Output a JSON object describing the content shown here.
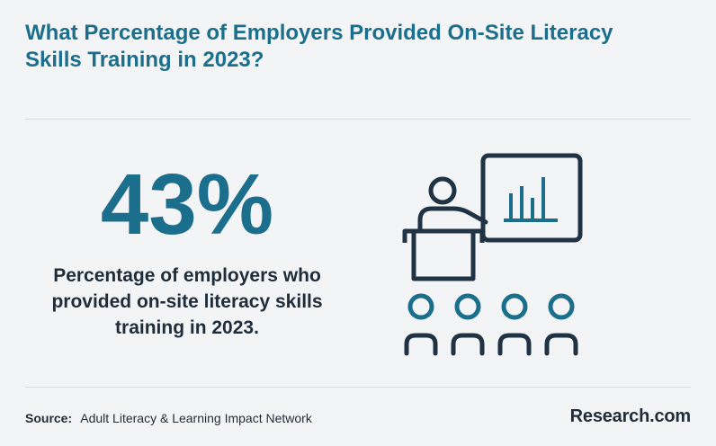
{
  "title": "What Percentage of Employers Provided On-Site Literacy Skills Training in 2023?",
  "stat": {
    "value": "43%",
    "description": "Percentage of employers who provided on-site literacy skills training in 2023."
  },
  "illustration": {
    "icon": "classroom-presentation-icon",
    "colors": {
      "primary": "#1b6e8c",
      "outline": "#1f3344"
    }
  },
  "footer": {
    "source_label": "Source:",
    "source_text": "Adult Literacy & Learning Impact Network",
    "brand": "Research.com"
  },
  "colors": {
    "background": "#f3f4f6",
    "accent": "#1b6e8c",
    "text": "#1f2d3a"
  }
}
